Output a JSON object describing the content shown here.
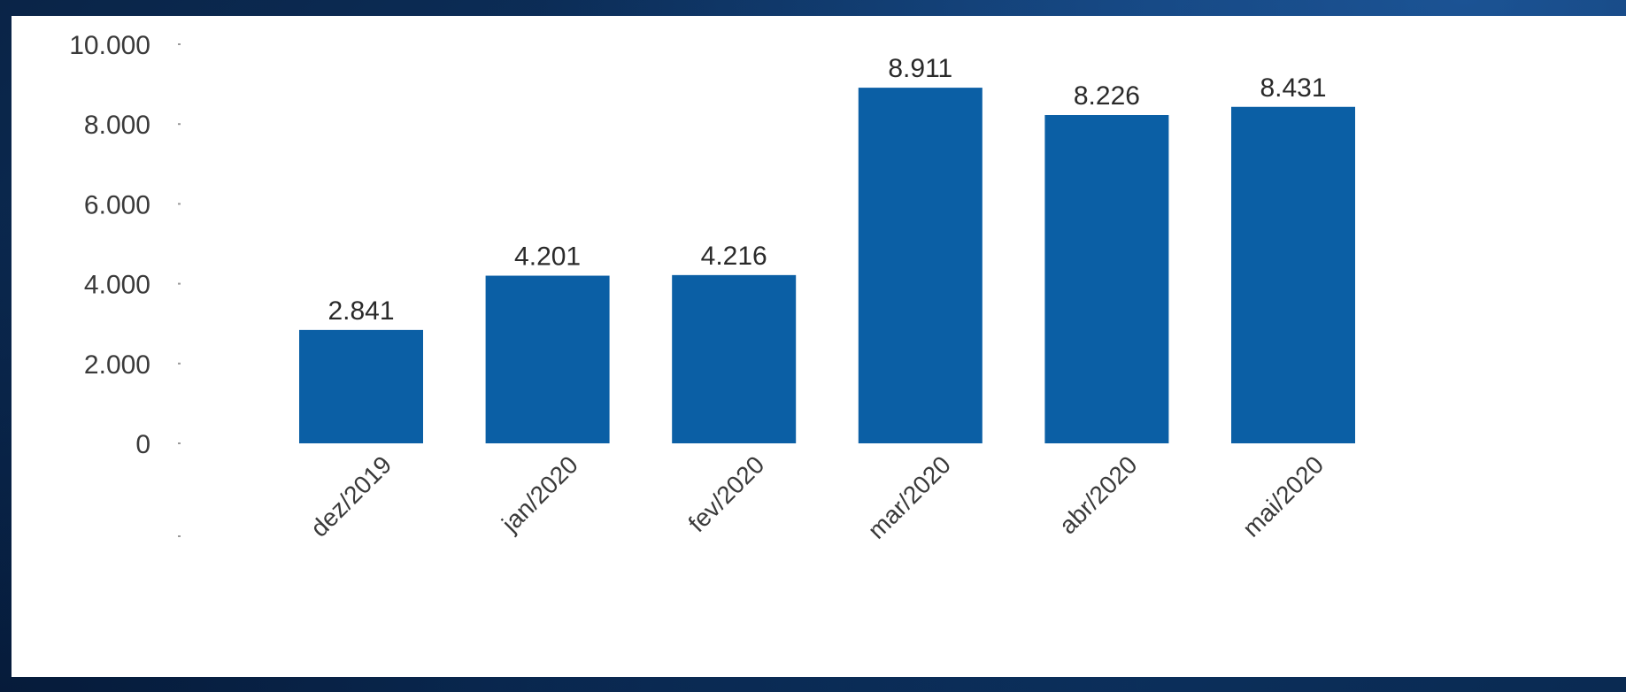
{
  "chart_data": {
    "type": "bar",
    "categories": [
      "dez/2019",
      "jan/2020",
      "fev/2020",
      "mar/2020",
      "abr/2020",
      "mai/2020"
    ],
    "values": [
      2841,
      4201,
      4216,
      8911,
      8226,
      8431
    ],
    "value_labels": [
      "2.841",
      "4.201",
      "4.216",
      "8.911",
      "8.226",
      "8.431"
    ],
    "yticks": [
      0,
      2000,
      4000,
      6000,
      8000,
      10000
    ],
    "ytick_labels": [
      "0",
      "2.000",
      "4.000",
      "6.000",
      "8.000",
      "10.000"
    ],
    "ylim": [
      0,
      10000
    ],
    "grid": false,
    "legend": "none",
    "bar_color": "#0b5fa5",
    "title": "",
    "xlabel": "",
    "ylabel": ""
  },
  "theme": {
    "background": "#0b2a52",
    "panel": "#ffffff"
  }
}
